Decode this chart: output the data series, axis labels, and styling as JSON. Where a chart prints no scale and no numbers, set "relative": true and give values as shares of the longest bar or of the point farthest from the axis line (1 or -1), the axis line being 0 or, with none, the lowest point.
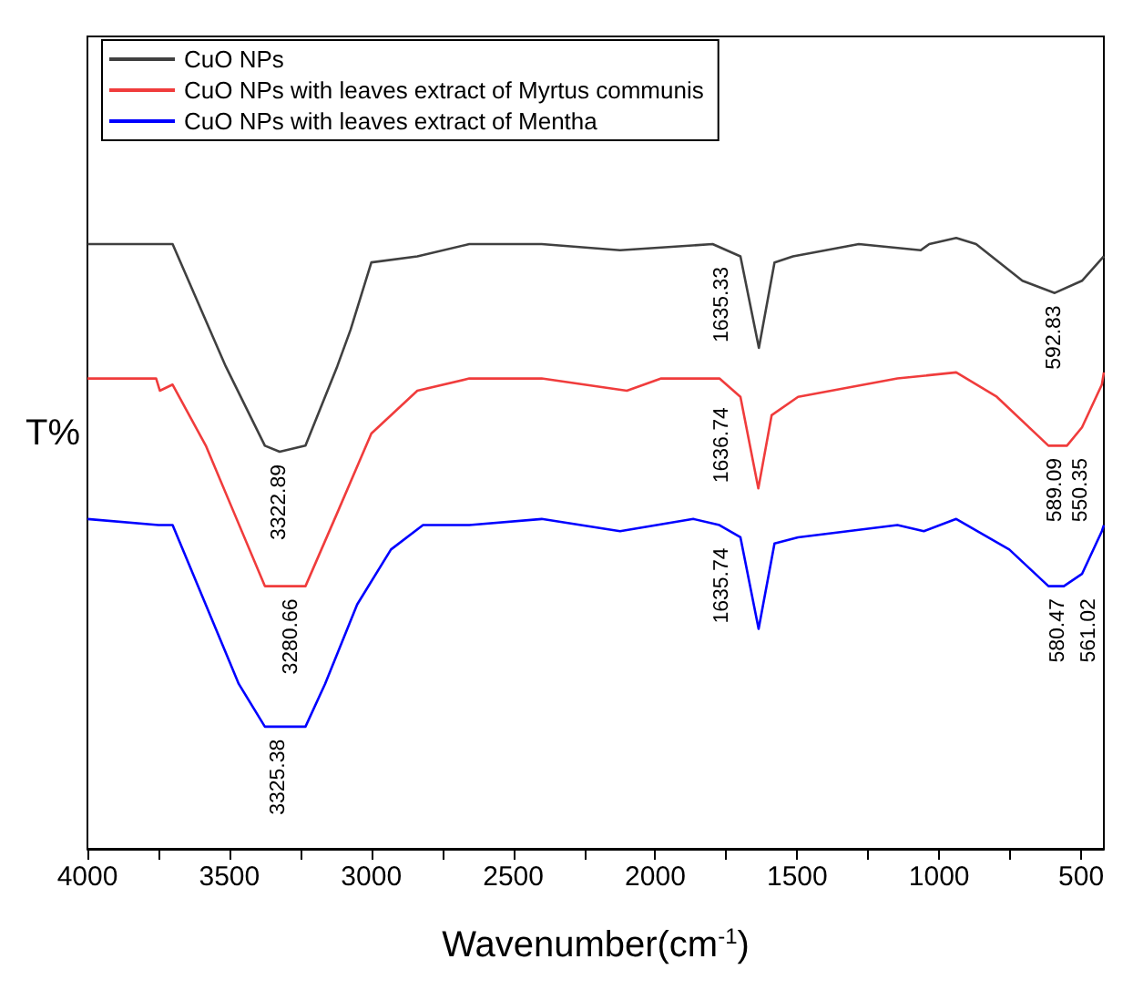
{
  "chart_data": {
    "type": "line",
    "relative": true,
    "xlabel": "Wavenumber(cm$^{-1}$)",
    "ylabel": "T%",
    "xlim": [
      4000,
      420
    ],
    "xticks": [
      4000,
      {
        "value": 3750,
        "label": null
      },
      3500,
      {
        "value": 3250,
        "label": null
      },
      3000,
      {
        "value": 2750,
        "label": null
      },
      2500,
      {
        "value": 2250,
        "label": null
      },
      2000,
      {
        "value": 1750,
        "label": null
      },
      1500,
      {
        "value": 1250,
        "label": null
      },
      1000,
      {
        "value": 750,
        "label": null
      },
      500
    ],
    "legend": "top left",
    "grid": false,
    "series": [
      {
        "name": "CuO NPs",
        "color": "#404040",
        "x": [
          4000,
          3750,
          3700,
          3513,
          3375,
          3323,
          3232,
          3120,
          3073,
          3000,
          2838,
          2655,
          2400,
          2124,
          1798,
          1700,
          1635,
          1580,
          1515,
          1283,
          1065,
          1035,
          940,
          870,
          707,
          593,
          497,
          420
        ],
        "values": [
          0.99,
          0.99,
          0.99,
          0.79,
          0.66,
          0.65,
          0.66,
          0.79,
          0.85,
          0.96,
          0.97,
          0.99,
          0.99,
          0.98,
          0.99,
          0.97,
          0.82,
          0.96,
          0.97,
          0.99,
          0.98,
          0.99,
          1.0,
          0.99,
          0.93,
          0.91,
          0.93,
          0.97
        ]
      },
      {
        "name": "CuO NPs with leaves extract of Myrtus communis",
        "color": "#f03c3c",
        "x": [
          4000,
          3800,
          3758,
          3745,
          3700,
          3583,
          3375,
          3281,
          3232,
          3120,
          3000,
          2838,
          2655,
          2400,
          2100,
          1979,
          1774,
          1700,
          1637,
          1590,
          1497,
          1147,
          940,
          797,
          615,
          589,
          550,
          497,
          427,
          420
        ],
        "values": [
          0.77,
          0.77,
          0.77,
          0.75,
          0.76,
          0.66,
          0.43,
          0.43,
          0.43,
          0.55,
          0.68,
          0.75,
          0.77,
          0.77,
          0.75,
          0.77,
          0.77,
          0.74,
          0.59,
          0.71,
          0.74,
          0.77,
          0.78,
          0.74,
          0.66,
          0.66,
          0.66,
          0.69,
          0.76,
          0.78
        ]
      },
      {
        "name": "CuO NPs with leaves extract of Mentha",
        "color": "#0000ff",
        "x": [
          4000,
          3750,
          3700,
          3467,
          3375,
          3325,
          3232,
          3163,
          3050,
          2931,
          2818,
          2655,
          2400,
          2124,
          1866,
          1774,
          1700,
          1636,
          1580,
          1497,
          1147,
          1054,
          940,
          753,
          615,
          580,
          561,
          497,
          427,
          420
        ],
        "values": [
          0.54,
          0.53,
          0.53,
          0.27,
          0.2,
          0.2,
          0.2,
          0.27,
          0.4,
          0.49,
          0.53,
          0.53,
          0.54,
          0.52,
          0.54,
          0.53,
          0.51,
          0.36,
          0.5,
          0.51,
          0.53,
          0.52,
          0.54,
          0.49,
          0.43,
          0.43,
          0.43,
          0.45,
          0.52,
          0.53
        ]
      }
    ],
    "annotations": [
      {
        "text": "3322.89",
        "x": 3322.89,
        "y": 0.65
      },
      {
        "text": "1635.33",
        "x": 1635.33,
        "y": 0.82
      },
      {
        "text": "592.83",
        "x": 592.83,
        "y": 0.91
      },
      {
        "text": "3280.66",
        "x": 3280.66,
        "y": 0.43
      },
      {
        "text": "1636.74",
        "x": 1636.74,
        "y": 0.59
      },
      {
        "text": "589.09",
        "x": 589.09,
        "y": 0.66
      },
      {
        "text": "550.35",
        "x": 550.35,
        "y": 0.66
      },
      {
        "text": "3325.38",
        "x": 3325.38,
        "y": 0.2
      },
      {
        "text": "1635.74",
        "x": 1635.74,
        "y": 0.36
      },
      {
        "text": "580.47",
        "x": 580.47,
        "y": 0.43
      },
      {
        "text": "561.02",
        "x": 561.02,
        "y": 0.43
      }
    ]
  }
}
